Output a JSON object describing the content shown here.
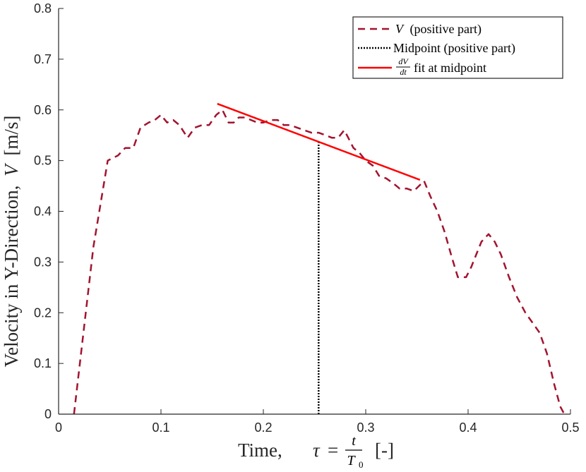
{
  "chart_data": {
    "type": "line",
    "title": "",
    "xlabel": {
      "prefix": "Time,",
      "tau": "τ",
      "equals": "=",
      "num": "t",
      "den": "T",
      "den_sub": "0",
      "suffix": "[-]"
    },
    "ylabel": {
      "text": "Velocity in Y-Direction,",
      "var": "V",
      "unit": "[m/s]"
    },
    "xlim": [
      0,
      0.5
    ],
    "ylim": [
      0,
      0.8
    ],
    "xticks": [
      0,
      0.1,
      0.2,
      0.3,
      0.4,
      0.5
    ],
    "xtick_labels": [
      "0",
      "0.1",
      "0.2",
      "0.3",
      "0.4",
      "0.5"
    ],
    "yticks": [
      0,
      0.1,
      0.2,
      0.3,
      0.4,
      0.5,
      0.6,
      0.7,
      0.8
    ],
    "ytick_labels": [
      "0",
      "0.1",
      "0.2",
      "0.3",
      "0.4",
      "0.5",
      "0.6",
      "0.7",
      "0.8"
    ],
    "grid": false,
    "legend_position": "top-right",
    "series": [
      {
        "name": "V (positive part)",
        "style": "dashed",
        "color": "#A2142F",
        "x": [
          0.015,
          0.034,
          0.048,
          0.058,
          0.065,
          0.073,
          0.08,
          0.088,
          0.094,
          0.1,
          0.106,
          0.112,
          0.118,
          0.126,
          0.133,
          0.14,
          0.147,
          0.154,
          0.16,
          0.166,
          0.171,
          0.176,
          0.182,
          0.188,
          0.194,
          0.2,
          0.207,
          0.214,
          0.22,
          0.226,
          0.233,
          0.24,
          0.247,
          0.254,
          0.261,
          0.267,
          0.273,
          0.279,
          0.283,
          0.288,
          0.294,
          0.3,
          0.307,
          0.313,
          0.32,
          0.327,
          0.333,
          0.34,
          0.347,
          0.352,
          0.357,
          0.363,
          0.37,
          0.377,
          0.384,
          0.39,
          0.398,
          0.403,
          0.408,
          0.413,
          0.42,
          0.426,
          0.432,
          0.44,
          0.448,
          0.456,
          0.463,
          0.47,
          0.477,
          0.484,
          0.49,
          0.494
        ],
        "y": [
          0.0,
          0.33,
          0.5,
          0.51,
          0.525,
          0.525,
          0.565,
          0.575,
          0.58,
          0.59,
          0.575,
          0.58,
          0.57,
          0.545,
          0.565,
          0.57,
          0.57,
          0.59,
          0.6,
          0.575,
          0.575,
          0.585,
          0.585,
          0.58,
          0.575,
          0.575,
          0.58,
          0.58,
          0.57,
          0.57,
          0.565,
          0.56,
          0.555,
          0.555,
          0.55,
          0.545,
          0.545,
          0.56,
          0.545,
          0.525,
          0.515,
          0.5,
          0.49,
          0.47,
          0.465,
          0.455,
          0.445,
          0.445,
          0.44,
          0.45,
          0.46,
          0.43,
          0.4,
          0.36,
          0.31,
          0.27,
          0.27,
          0.29,
          0.315,
          0.34,
          0.355,
          0.34,
          0.315,
          0.27,
          0.23,
          0.2,
          0.18,
          0.16,
          0.12,
          0.06,
          0.015,
          0.0
        ]
      },
      {
        "name": "Midpoint (positive part)",
        "style": "dotted",
        "color": "#000000",
        "x": [
          0.254,
          0.254
        ],
        "y": [
          0.0,
          0.535
        ]
      },
      {
        "name": "dV/dt fit at midpoint",
        "style": "solid",
        "color": "#FF0000",
        "x": [
          0.155,
          0.353
        ],
        "y": [
          0.612,
          0.462
        ]
      }
    ],
    "legend": [
      {
        "var": "V",
        "text": "(positive part)",
        "color": "#A2142F",
        "style": "dashed"
      },
      {
        "text": "Midpoint (positive part)",
        "color": "#000000",
        "style": "dotted"
      },
      {
        "frac_num": "dV",
        "frac_den": "dt",
        "text": "fit at midpoint",
        "color": "#FF0000",
        "style": "solid"
      }
    ]
  }
}
